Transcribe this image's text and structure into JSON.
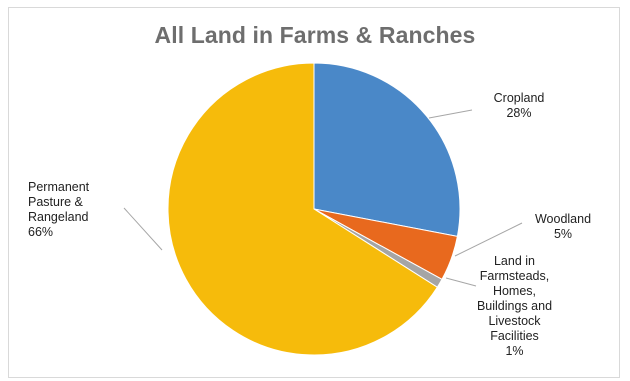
{
  "chart_data": {
    "type": "pie",
    "title": "All Land in Farms & Ranches",
    "slices": [
      {
        "name": "Cropland",
        "label_lines": [
          "Cropland",
          "28%"
        ],
        "value": 28,
        "color": "#4a88c8"
      },
      {
        "name": "Woodland",
        "label_lines": [
          "Woodland",
          "5%"
        ],
        "value": 5,
        "color": "#e8691e"
      },
      {
        "name": "Land in Farmsteads, Homes, Buildings and Livestock Facilities",
        "label_lines": [
          "Land in",
          "Farmsteads,",
          "Homes,",
          "Buildings and",
          "Livestock",
          "Facilities",
          "1%"
        ],
        "value": 1,
        "color": "#a5a5a5"
      },
      {
        "name": "Permanent Pasture & Rangeland",
        "label_lines": [
          "Permanent",
          "Pasture &",
          "Rangeland",
          "66%"
        ],
        "value": 66,
        "color": "#f6bb0b"
      }
    ],
    "legend": "none"
  }
}
